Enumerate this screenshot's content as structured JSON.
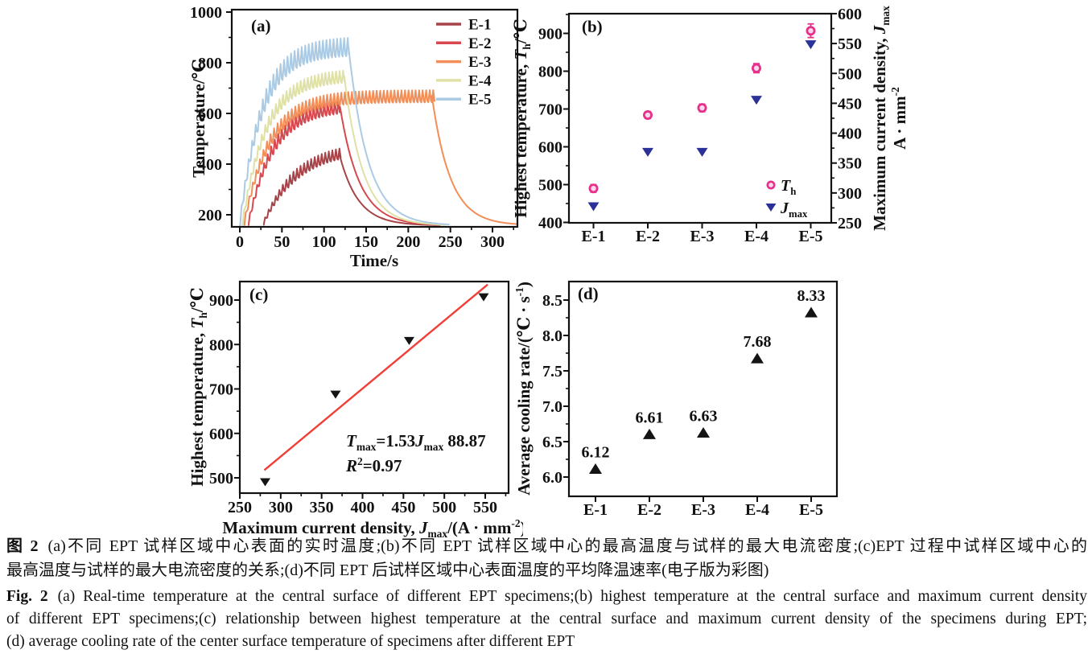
{
  "figure": {
    "panels": [
      "(a)",
      "(b)",
      "(c)",
      "(d)"
    ]
  },
  "chart_data": [
    {
      "id": "a",
      "type": "line",
      "panel": "(a)",
      "xlabel": "Time/s",
      "ylabel": "Temperature/℃",
      "xticks": [
        0,
        50,
        100,
        150,
        200,
        250,
        300
      ],
      "yticks": [
        200,
        400,
        600,
        800,
        1000
      ],
      "xlim": [
        -10,
        330
      ],
      "ylim": [
        152,
        1010
      ],
      "series": [
        {
          "label": "E-1",
          "color": "#A64449",
          "t_start": 28,
          "t_pulse_end": 118,
          "T_start": 165,
          "T_plateau": 465,
          "rise_tau": 40,
          "osc_amp": 28,
          "cool_tau": 22,
          "period": 4.2
        },
        {
          "label": "E-2",
          "color": "#D7484F",
          "t_start": 10,
          "t_pulse_end": 119,
          "T_start": 165,
          "T_plateau": 628,
          "rise_tau": 30,
          "osc_amp": 32,
          "cool_tau": 23,
          "period": 4.2
        },
        {
          "label": "E-3",
          "color": "#F28E58",
          "t_start": 5,
          "t_pulse_end": 228,
          "T_start": 165,
          "T_plateau": 660,
          "rise_tau": 30,
          "osc_amp": 32,
          "cool_tau": 22,
          "period": 4.2
        },
        {
          "label": "E-4",
          "color": "#DFE1A6",
          "t_start": 3,
          "t_pulse_end": 124,
          "T_start": 165,
          "T_plateau": 745,
          "rise_tau": 28,
          "osc_amp": 32,
          "cool_tau": 22,
          "period": 4.2
        },
        {
          "label": "E-5",
          "color": "#AACBE3",
          "t_start": 0,
          "t_pulse_end": 129,
          "T_start": 165,
          "T_plateau": 855,
          "rise_tau": 26,
          "osc_amp": 48,
          "cool_tau": 23,
          "period": 4.2
        }
      ]
    },
    {
      "id": "b",
      "type": "scatter-dual",
      "panel": "(b)",
      "categories": [
        "E-1",
        "E-2",
        "E-3",
        "E-4",
        "E-5"
      ],
      "ylabel_left_parts": [
        {
          "t": "Highest temperature, "
        },
        {
          "t": "T",
          "i": true
        },
        {
          "t": "h",
          "sub": true
        },
        {
          "t": "/℃"
        }
      ],
      "ylabel_right_line1_parts": [
        {
          "t": "Maximum current density, "
        },
        {
          "t": "J",
          "i": true
        },
        {
          "t": "max",
          "sub": true
        }
      ],
      "ylabel_right_line2_parts": [
        {
          "t": "A · mm"
        },
        {
          "t": "-2",
          "sup": true
        }
      ],
      "left_yticks": [
        400,
        500,
        600,
        700,
        800,
        900
      ],
      "left_ylim": [
        400,
        951
      ],
      "right_yticks": [
        250,
        300,
        350,
        400,
        450,
        500,
        550,
        600
      ],
      "right_ylim": [
        250,
        600
      ],
      "series": [
        {
          "name": "Th",
          "legend_parts": [
            {
              "t": "T",
              "i": true
            },
            {
              "t": "h",
              "sub": true
            }
          ],
          "marker": "circle",
          "color": "#E7308C",
          "fill": "#FBD9EB",
          "axis": "left",
          "values": [
            490,
            684,
            703,
            808,
            907
          ],
          "errors": [
            10,
            9,
            10,
            12,
            18
          ]
        },
        {
          "name": "Jmax",
          "legend_parts": [
            {
              "t": "J",
              "i": true
            },
            {
              "t": "max",
              "sub": true
            }
          ],
          "marker": "triangle-down",
          "color": "#2B3198",
          "axis": "right",
          "values": [
            277,
            368,
            368,
            455,
            548
          ]
        }
      ]
    },
    {
      "id": "c",
      "type": "scatter-fit",
      "panel": "(c)",
      "xlabel_parts": [
        {
          "t": "Maximum current density, "
        },
        {
          "t": "J",
          "i": true
        },
        {
          "t": "max",
          "sub": true
        },
        {
          "t": "/(A · mm"
        },
        {
          "t": "-2",
          "sup": true
        },
        {
          "t": ")"
        }
      ],
      "ylabel_parts": [
        {
          "t": "Highest temperature, "
        },
        {
          "t": "T",
          "i": true
        },
        {
          "t": "h",
          "sub": true
        },
        {
          "t": "/℃"
        }
      ],
      "xticks": [
        250,
        300,
        350,
        400,
        450,
        500,
        550
      ],
      "yticks": [
        500,
        600,
        700,
        800,
        900
      ],
      "xlim": [
        250,
        578
      ],
      "ylim": [
        466,
        942
      ],
      "points": {
        "x": [
          281,
          367,
          457,
          548
        ],
        "y": [
          490,
          687,
          808,
          906
        ]
      },
      "marker_color": "#141414",
      "fit": {
        "slope": 1.53,
        "intercept": 88.87,
        "x_range": [
          280,
          553
        ],
        "color": "#F23E36"
      },
      "equation_parts": [
        {
          "t": "T",
          "i": true
        },
        {
          "t": "max",
          "sub": true
        },
        {
          "t": "=1.53"
        },
        {
          "t": "J",
          "i": true
        },
        {
          "t": "max",
          "sub": true
        },
        {
          "t": " 88.87"
        }
      ],
      "r2_parts": [
        {
          "t": "R",
          "i": true
        },
        {
          "t": "2",
          "sup": true
        },
        {
          "t": "=0.97"
        }
      ]
    },
    {
      "id": "d",
      "type": "scatter-labeled",
      "panel": "(d)",
      "categories": [
        "E-1",
        "E-2",
        "E-3",
        "E-4",
        "E-5"
      ],
      "ylabel_parts": [
        {
          "t": "Average cooling rate/(℃ · s"
        },
        {
          "t": "-1",
          "sup": true
        },
        {
          "t": ")"
        }
      ],
      "ytick_labels": [
        "6.0",
        "6.5",
        "7.0",
        "7.5",
        "8.0",
        "8.5"
      ],
      "yticks": [
        6.0,
        6.5,
        7.0,
        7.5,
        8.0,
        8.5
      ],
      "ylim": [
        5.73,
        8.76
      ],
      "values": [
        6.12,
        6.61,
        6.63,
        7.68,
        8.33
      ],
      "labels": [
        "6.12",
        "6.61",
        "6.63",
        "7.68",
        "8.33"
      ],
      "marker_color": "#141414"
    }
  ],
  "caption": {
    "cn_prefix": "图 2",
    "cn_line1": "(a)不同 EPT 试样区域中心表面的实时温度;(b)不同 EPT 试样区域中心的最高温度与试样的最大电流密度;(c)EPT 过程中试样区域中心的",
    "cn_line2": "最高温度与试样的最大电流密度的关系;(d)不同 EPT 后试样区域中心表面温度的平均降温速率(电子版为彩图)",
    "en_prefix": "Fig. 2",
    "en_line1": "(a) Real-time temperature at the central surface of different EPT specimens;(b) highest temperature at the central surface and maximum current density",
    "en_line2": "of different EPT specimens;(c) relationship between highest temperature at the central surface and maximum current density of the specimens during EPT;",
    "en_line3": "(d) average cooling rate of the center surface temperature of specimens after different EPT"
  }
}
